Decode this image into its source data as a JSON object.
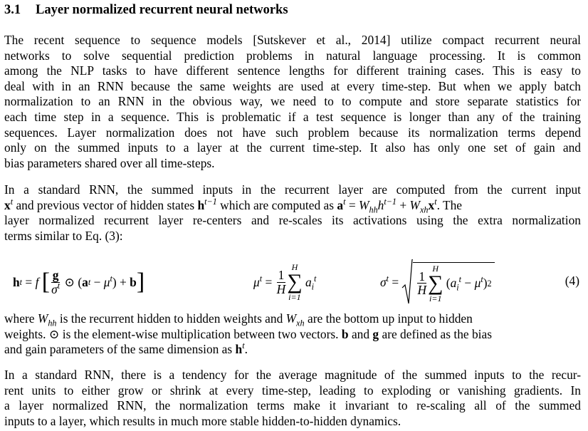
{
  "section": {
    "number": "3.1",
    "title": "Layer normalized recurrent neural networks"
  },
  "p1": [
    "The recent sequence to sequence models [Sutskever et al., 2014] utilize compact recurrent neural",
    "networks to solve sequential prediction problems in natural language processing. It is common",
    "among the NLP tasks to have different sentence lengths for different training cases. This is easy to",
    "deal with in an RNN because the same weights are used at every time-step. But when we apply batch",
    "normalization to an RNN in the obvious way, we need to to compute and store separate statistics for",
    "each time step in a sequence. This is problematic if a test sequence is longer than any of the training",
    "sequences. Layer normalization does not have such problem because its normalization terms depend",
    "only on the summed inputs to a layer at the current time-step. It also has only one set of gain and",
    "bias parameters shared over all time-steps."
  ],
  "p2": {
    "l1": "In a standard RNN, the summed inputs in the recurrent layer are computed from the current input",
    "l2_a": "and previous vector of hidden states",
    "l2_b": "which are computed as",
    "l3": "layer normalized recurrent layer re-centers and re-scales its activations using the extra normalization",
    "l4": "terms similar to Eq. (3):"
  },
  "equation_number": "(4)",
  "p3": {
    "l1_a": "where",
    "l1_b": "is the recurrent hidden to hidden weights and",
    "l1_c": "are the bottom up input to hidden",
    "l2_a": "weights.",
    "l2_b": "is the element-wise multiplication between two vectors.",
    "l2_c": "and",
    "l2_d": "are defined as the bias",
    "l3": "and gain parameters of the same dimension as"
  },
  "p4": [
    "In a standard RNN, there is a tendency for the average magnitude of the summed inputs to the recur-",
    "rent units to either grow or shrink at every time-step, leading to exploding or vanishing gradients. In",
    "a layer normalized RNN, the normalization terms make it invariant to re-scaling all of the summed",
    "inputs to a layer, which results in much more stable hidden-to-hidden dynamics."
  ]
}
